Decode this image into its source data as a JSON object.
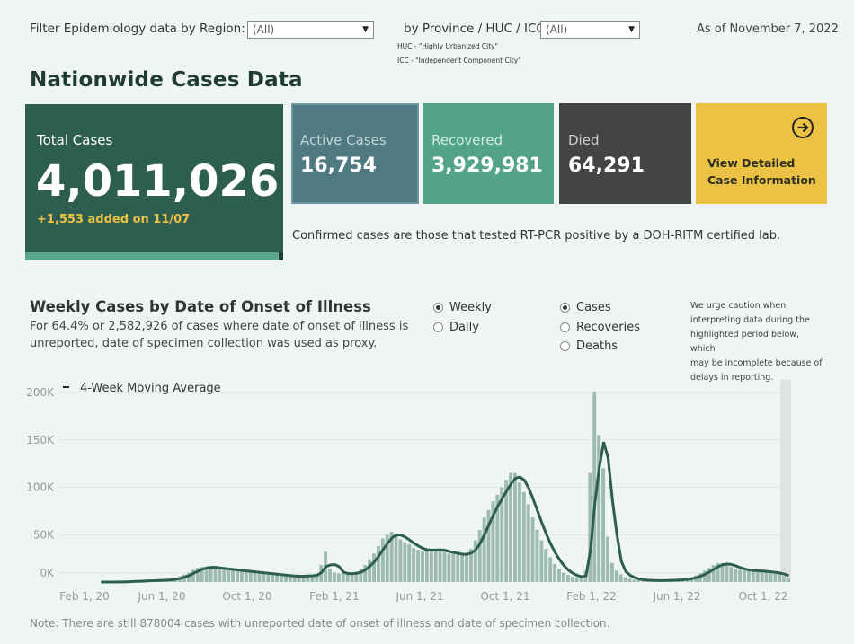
{
  "filters": {
    "region_label": "Filter Epidemiology data by Region:",
    "region_value": "(All)",
    "province_label": "by Province / HUC / ICC:",
    "province_value": "(All)",
    "huc_note": "HUC - \"Highly Urbanized City\"",
    "icc_note": "ICC - \"Independent Component City\"",
    "as_of": "As of November 7, 2022"
  },
  "page_title": "Nationwide Cases Data",
  "kpis": {
    "total_label": "Total Cases",
    "total_value": "4,011,026",
    "total_added": "+1,553 added on 11/07",
    "active_label": "Active Cases",
    "active_value": "16,754",
    "recovered_label": "Recovered",
    "recovered_value": "3,929,981",
    "died_label": "Died",
    "died_value": "64,291",
    "detail_line1": "View Detailed",
    "detail_line2": "Case Information"
  },
  "confirmed_note": "Confirmed cases are those that tested RT-PCR positive by a DOH-RITM certified lab.",
  "weekly": {
    "title": "Weekly Cases by Date of Onset of Illness",
    "subtitle_line1": "For 64.4% or 2,582,926 of cases where date of onset of illness is",
    "subtitle_line2": "unreported, date of specimen collection was used as proxy.",
    "period_options": [
      {
        "label": "Weekly",
        "selected": true
      },
      {
        "label": "Daily",
        "selected": false
      }
    ],
    "metric_options": [
      {
        "label": "Cases",
        "selected": true
      },
      {
        "label": "Recoveries",
        "selected": false
      },
      {
        "label": "Deaths",
        "selected": false
      }
    ],
    "caution_lines": [
      "We urge caution when",
      "interpreting data during the",
      "highlighted period below, which",
      "may be incomplete because of",
      "delays in reporting."
    ]
  },
  "chart_data": {
    "type": "bar",
    "legend_label": "4-Week Moving Average",
    "y_ticks": [
      "200K",
      "150K",
      "100K",
      "50K",
      "0K"
    ],
    "x_ticks": [
      "Feb 1, 20",
      "Jun 1, 20",
      "Oct 1, 20",
      "Feb 1, 21",
      "Jun 1, 21",
      "Oct 1, 21",
      "Feb 1, 22",
      "Jun 1, 22",
      "Oct 1, 22"
    ],
    "ylim": [
      0,
      210000
    ],
    "week_start": "2020-01-27",
    "weekly_cases": [
      0,
      0,
      0,
      100,
      200,
      300,
      500,
      800,
      1000,
      1200,
      1400,
      1500,
      1700,
      1900,
      2100,
      2500,
      3000,
      4000,
      6000,
      8000,
      10000,
      13000,
      15000,
      16000,
      16000,
      15000,
      15000,
      14000,
      13500,
      13000,
      12500,
      12000,
      11500,
      11000,
      10500,
      10000,
      9500,
      9000,
      8500,
      8000,
      7500,
      7000,
      6500,
      6000,
      6000,
      6000,
      6500,
      7000,
      7000,
      8000,
      18000,
      32000,
      14000,
      10000,
      9000,
      9000,
      8000,
      9000,
      11000,
      14000,
      18000,
      24000,
      30000,
      38000,
      46000,
      50000,
      53000,
      50000,
      45000,
      42000,
      40000,
      36000,
      34000,
      32000,
      34000,
      35000,
      34000,
      33000,
      32000,
      30000,
      30000,
      29000,
      28000,
      30000,
      35000,
      44000,
      55000,
      68000,
      76000,
      85000,
      92000,
      100000,
      108000,
      115000,
      115000,
      105000,
      95000,
      82000,
      68000,
      55000,
      44000,
      35000,
      26000,
      19000,
      14000,
      10000,
      7500,
      5500,
      4500,
      5000,
      12000,
      115000,
      201000,
      155000,
      120000,
      48000,
      20000,
      12000,
      8000,
      5000,
      3500,
      2500,
      2000,
      1800,
      1600,
      1500,
      1500,
      1600,
      1800,
      2000,
      2200,
      2500,
      3000,
      3500,
      5000,
      7000,
      9000,
      12000,
      15000,
      18000,
      20000,
      20000,
      18000,
      16000,
      14000,
      13000,
      12000,
      12000,
      12000,
      11500,
      11000,
      10500,
      10000,
      9500,
      8000,
      6000,
      3500
    ],
    "moving_average_peaks": [
      {
        "date": "2020-08",
        "value": 14000
      },
      {
        "date": "2021-04",
        "value": 49000
      },
      {
        "date": "2021-09",
        "value": 110000
      },
      {
        "date": "2022-01",
        "value": 142000
      },
      {
        "date": "2022-08",
        "value": 18000
      }
    ],
    "highlight_recent_weeks": 2,
    "colors": {
      "bar": "#9dbbaf",
      "line": "#2d5e50",
      "highlight": "#dde3e3",
      "grid": "#cfd9d6"
    }
  },
  "footnote": "Note: There are still 878004 cases with unreported date of onset of illness and date of specimen collection."
}
